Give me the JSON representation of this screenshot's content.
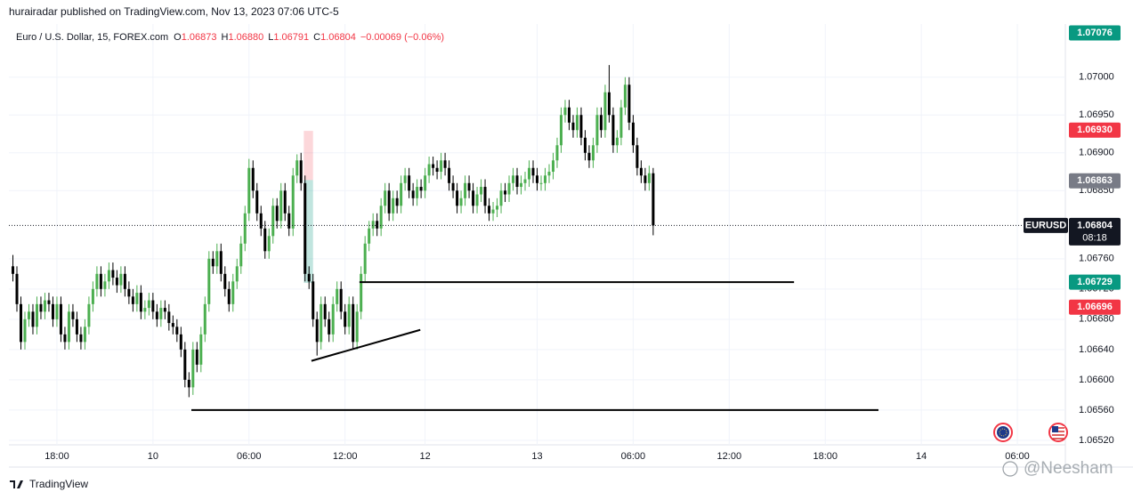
{
  "chart_data": {
    "type": "candlestick",
    "publisher": "hurairadar published on TradingView.com, Nov 13, 2023 07:06 UTC-5",
    "title": "Euro / U.S. Dollar, 15, FOREX.com",
    "ohlc_display": [
      {
        "key": "O",
        "text": "1.06873"
      },
      {
        "key": "H",
        "text": "1.06880"
      },
      {
        "key": "L",
        "text": "1.06791"
      },
      {
        "key": "C",
        "text": "1.06804"
      }
    ],
    "change": "−0.00069 (−0.06%)",
    "grid": true,
    "xlim": [
      -1,
      263
    ],
    "ylim": [
      1.06514,
      1.07102
    ],
    "xticks": [
      {
        "value": 11,
        "label": "18:00"
      },
      {
        "value": 35,
        "label": "10"
      },
      {
        "value": 59,
        "label": "06:00"
      },
      {
        "value": 83,
        "label": "12:00"
      },
      {
        "value": 103,
        "label": "12"
      },
      {
        "value": 131,
        "label": "13"
      },
      {
        "value": 155,
        "label": "06:00"
      },
      {
        "value": 179,
        "label": "12:00"
      },
      {
        "value": 203,
        "label": "18:00"
      },
      {
        "value": 227,
        "label": "14"
      },
      {
        "value": 251,
        "label": "06:00"
      }
    ],
    "yticks": [
      {
        "value": 1.07,
        "label": "1.07000"
      },
      {
        "value": 1.0695,
        "label": "1.06950"
      },
      {
        "value": 1.069,
        "label": "1.06900"
      },
      {
        "value": 1.0685,
        "label": "1.06850"
      },
      {
        "value": 1.0676,
        "label": "1.06760"
      },
      {
        "value": 1.0672,
        "label": "1.06720"
      },
      {
        "value": 1.0668,
        "label": "1.06680"
      },
      {
        "value": 1.0664,
        "label": "1.06640"
      },
      {
        "value": 1.066,
        "label": "1.06600"
      },
      {
        "value": 1.0656,
        "label": "1.06560"
      },
      {
        "value": 1.0652,
        "label": "1.06520"
      }
    ],
    "series": [
      {
        "name": "EURUSD",
        "up_color": "#4caf50",
        "down_color": "#000000",
        "open": [
          1.0675,
          1.0674,
          1.067,
          1.0665,
          1.0668,
          1.0669,
          1.0667,
          1.067,
          1.0669,
          1.06705,
          1.067,
          1.0668,
          1.067,
          1.0666,
          1.0665,
          1.0669,
          1.0668,
          1.0666,
          1.0665,
          1.0667,
          1.067,
          1.0672,
          1.0674,
          1.0672,
          1.0673,
          1.06745,
          1.06735,
          1.06725,
          1.0674,
          1.0672,
          1.0671,
          1.067,
          1.06715,
          1.0669,
          1.06695,
          1.06705,
          1.0669,
          1.0668,
          1.06695,
          1.0669,
          1.06675,
          1.0667,
          1.0666,
          1.0664,
          1.066,
          1.0659,
          1.0664,
          1.0662,
          1.0666,
          1.067,
          1.0676,
          1.0675,
          1.0677,
          1.0674,
          1.0672,
          1.067,
          1.0673,
          1.0675,
          1.0678,
          1.0682,
          1.0688,
          1.0685,
          1.0682,
          1.068,
          1.0677,
          1.0679,
          1.0683,
          1.0681,
          1.0685,
          1.0682,
          1.068,
          1.0687,
          1.0689,
          1.0686,
          1.0674,
          1.0673,
          1.0668,
          1.0665,
          1.067,
          1.0668,
          1.0666,
          1.067,
          1.0672,
          1.0669,
          1.0667,
          1.067,
          1.0665,
          1.0669,
          1.0674,
          1.0678,
          1.068,
          1.0681,
          1.068,
          1.0683,
          1.0685,
          1.0682,
          1.0684,
          1.0683,
          1.0686,
          1.0687,
          1.0685,
          1.0684,
          1.06855,
          1.0685,
          1.0687,
          1.06885,
          1.0688,
          1.06875,
          1.0689,
          1.0688,
          1.0686,
          1.0685,
          1.0683,
          1.0684,
          1.0686,
          1.0685,
          1.0683,
          1.06845,
          1.06855,
          1.0683,
          1.0682,
          1.06825,
          1.0683,
          1.0685,
          1.06845,
          1.0686,
          1.0687,
          1.06855,
          1.0686,
          1.06865,
          1.0688,
          1.0687,
          1.0686,
          1.0686,
          1.0687,
          1.06875,
          1.0689,
          1.0691,
          1.0695,
          1.0696,
          1.0694,
          1.0693,
          1.0695,
          1.0692,
          1.069,
          1.0689,
          1.0691,
          1.0695,
          1.0693,
          1.0698,
          1.0695,
          1.0691,
          1.0692,
          1.0696,
          1.0699,
          1.0694,
          1.0691,
          1.0688,
          1.0687,
          1.0686,
          1.06873
        ],
        "high": [
          1.06765,
          1.0675,
          1.0671,
          1.0669,
          1.067,
          1.067,
          1.0671,
          1.0671,
          1.06715,
          1.06715,
          1.0671,
          1.0671,
          1.0671,
          1.0667,
          1.067,
          1.067,
          1.0669,
          1.0667,
          1.0668,
          1.0671,
          1.0673,
          1.0675,
          1.0675,
          1.0674,
          1.06755,
          1.06755,
          1.06745,
          1.0675,
          1.0675,
          1.0673,
          1.0672,
          1.06725,
          1.06725,
          1.06705,
          1.06715,
          1.06715,
          1.067,
          1.06705,
          1.06705,
          1.067,
          1.06685,
          1.0668,
          1.0667,
          1.0665,
          1.0661,
          1.0665,
          1.0665,
          1.0667,
          1.0671,
          1.0677,
          1.0677,
          1.0678,
          1.0678,
          1.0675,
          1.0673,
          1.0674,
          1.0676,
          1.0679,
          1.0683,
          1.06892,
          1.0689,
          1.0686,
          1.0683,
          1.0681,
          1.068,
          1.0684,
          1.0684,
          1.0686,
          1.0686,
          1.0683,
          1.0688,
          1.06898,
          1.069,
          1.0687,
          1.0675,
          1.0674,
          1.0669,
          1.0671,
          1.0671,
          1.0669,
          1.0671,
          1.0673,
          1.0673,
          1.067,
          1.0671,
          1.0671,
          1.067,
          1.0675,
          1.0679,
          1.0681,
          1.0682,
          1.0682,
          1.0684,
          1.0686,
          1.0686,
          1.0685,
          1.0685,
          1.0687,
          1.0688,
          1.0688,
          1.0686,
          1.06865,
          1.06865,
          1.0688,
          1.06895,
          1.06895,
          1.0689,
          1.069,
          1.069,
          1.0689,
          1.0687,
          1.0686,
          1.0685,
          1.0687,
          1.0687,
          1.0686,
          1.06855,
          1.06865,
          1.06865,
          1.0684,
          1.06835,
          1.0684,
          1.0686,
          1.0686,
          1.0687,
          1.0688,
          1.0688,
          1.0687,
          1.06875,
          1.0689,
          1.0689,
          1.0688,
          1.0687,
          1.0688,
          1.06885,
          1.069,
          1.0692,
          1.0696,
          1.0697,
          1.0697,
          1.0695,
          1.0696,
          1.0696,
          1.0693,
          1.0691,
          1.0692,
          1.0696,
          1.0696,
          1.0699,
          1.07016,
          1.0696,
          1.0693,
          1.0697,
          1.07,
          1.07,
          1.0695,
          1.0692,
          1.0689,
          1.0688,
          1.06883,
          1.0688
        ],
        "low": [
          1.0673,
          1.0669,
          1.0664,
          1.0664,
          1.0667,
          1.0666,
          1.0666,
          1.0668,
          1.0668,
          1.0669,
          1.0667,
          1.0667,
          1.0665,
          1.0664,
          1.0664,
          1.0667,
          1.0665,
          1.0664,
          1.0664,
          1.0666,
          1.0669,
          1.0671,
          1.0671,
          1.0671,
          1.0672,
          1.06725,
          1.06715,
          1.06715,
          1.0671,
          1.067,
          1.0669,
          1.0669,
          1.0668,
          1.0668,
          1.06685,
          1.0668,
          1.0667,
          1.0667,
          1.0668,
          1.06665,
          1.0666,
          1.0665,
          1.0663,
          1.0659,
          1.06577,
          1.0658,
          1.0661,
          1.0661,
          1.0665,
          1.0669,
          1.0674,
          1.0674,
          1.0673,
          1.0671,
          1.0669,
          1.0669,
          1.0672,
          1.0674,
          1.0677,
          1.0681,
          1.0684,
          1.0681,
          1.0679,
          1.0676,
          1.0676,
          1.0678,
          1.068,
          1.068,
          1.0681,
          1.0679,
          1.0679,
          1.0686,
          1.0685,
          1.0673,
          1.0672,
          1.0667,
          1.06632,
          1.0664,
          1.0667,
          1.0665,
          1.0665,
          1.0669,
          1.0668,
          1.0666,
          1.0666,
          1.0664,
          1.0664,
          1.0668,
          1.0673,
          1.0677,
          1.0679,
          1.0679,
          1.0679,
          1.0682,
          1.0681,
          1.0681,
          1.0682,
          1.0682,
          1.0685,
          1.0684,
          1.0683,
          1.0683,
          1.0684,
          1.0684,
          1.0686,
          1.0687,
          1.06865,
          1.06865,
          1.0687,
          1.0685,
          1.0684,
          1.0682,
          1.0682,
          1.0683,
          1.0684,
          1.0682,
          1.0682,
          1.06835,
          1.0682,
          1.0681,
          1.0681,
          1.06815,
          1.0682,
          1.06835,
          1.06835,
          1.0685,
          1.06845,
          1.06845,
          1.0685,
          1.06855,
          1.0686,
          1.0685,
          1.0685,
          1.0685,
          1.0686,
          1.06865,
          1.0688,
          1.069,
          1.0694,
          1.0693,
          1.0692,
          1.0692,
          1.0691,
          1.0689,
          1.0688,
          1.0688,
          1.069,
          1.0692,
          1.0692,
          1.0694,
          1.069,
          1.069,
          1.0691,
          1.0695,
          1.0693,
          1.069,
          1.0687,
          1.0686,
          1.0685,
          1.0685,
          1.06791
        ],
        "close": [
          1.0674,
          1.067,
          1.0665,
          1.0668,
          1.0669,
          1.0667,
          1.067,
          1.0669,
          1.06705,
          1.067,
          1.0668,
          1.067,
          1.0666,
          1.0665,
          1.0669,
          1.0668,
          1.0666,
          1.0665,
          1.0667,
          1.067,
          1.0672,
          1.0674,
          1.0672,
          1.0673,
          1.06745,
          1.06735,
          1.06725,
          1.0674,
          1.0672,
          1.0671,
          1.067,
          1.06715,
          1.0669,
          1.06695,
          1.06705,
          1.0669,
          1.0668,
          1.06695,
          1.0669,
          1.06675,
          1.0667,
          1.0666,
          1.0664,
          1.066,
          1.0659,
          1.0664,
          1.0662,
          1.0666,
          1.067,
          1.0676,
          1.0675,
          1.0677,
          1.0674,
          1.0672,
          1.067,
          1.0673,
          1.0675,
          1.0678,
          1.0682,
          1.0688,
          1.0685,
          1.0682,
          1.068,
          1.0677,
          1.0679,
          1.0683,
          1.0681,
          1.0685,
          1.0682,
          1.068,
          1.0687,
          1.0689,
          1.0686,
          1.0674,
          1.0673,
          1.0668,
          1.0665,
          1.067,
          1.0668,
          1.0666,
          1.067,
          1.0672,
          1.0669,
          1.0667,
          1.067,
          1.0665,
          1.0669,
          1.0674,
          1.0678,
          1.068,
          1.0681,
          1.068,
          1.0683,
          1.0685,
          1.0682,
          1.0684,
          1.0683,
          1.0686,
          1.0687,
          1.0685,
          1.0684,
          1.06855,
          1.0685,
          1.0687,
          1.06885,
          1.0688,
          1.06875,
          1.0689,
          1.0688,
          1.0686,
          1.0685,
          1.0683,
          1.0684,
          1.0686,
          1.0685,
          1.0683,
          1.06845,
          1.06855,
          1.0683,
          1.0682,
          1.06825,
          1.0683,
          1.0685,
          1.06845,
          1.0686,
          1.0687,
          1.06855,
          1.0686,
          1.06865,
          1.0688,
          1.0687,
          1.0686,
          1.0686,
          1.0687,
          1.06875,
          1.0689,
          1.0691,
          1.0695,
          1.0696,
          1.0694,
          1.0693,
          1.0695,
          1.0692,
          1.069,
          1.0689,
          1.0691,
          1.0695,
          1.0693,
          1.0698,
          1.0695,
          1.0691,
          1.0692,
          1.0696,
          1.0699,
          1.0694,
          1.0691,
          1.0688,
          1.0687,
          1.0686,
          1.06873,
          1.06804
        ]
      }
    ],
    "current": {
      "value": 1.06804,
      "label": "1.06804",
      "symbol": "EURUSD",
      "countdown": "08:18"
    },
    "price_labels": [
      {
        "value": 1.07076,
        "label": "1.07076",
        "color": "#089981"
      },
      {
        "value": 1.0693,
        "label": "1.06930",
        "color": "#f23645"
      },
      {
        "value": 1.06863,
        "label": "1.06863",
        "color": "#787b86"
      },
      {
        "value": 1.06729,
        "label": "1.06729",
        "color": "#089981"
      },
      {
        "value": 1.06696,
        "label": "1.06696",
        "color": "#f23645"
      }
    ],
    "position_box": {
      "x": [
        72.7,
        75.0
      ],
      "stop": 1.06929,
      "entry": 1.06864,
      "target": 1.06728
    },
    "lines": [
      {
        "x": [
          44.6,
          216.3
        ],
        "y": [
          1.0656,
          1.0656
        ]
      },
      {
        "x": [
          86.6,
          195.2
        ],
        "y": [
          1.06729,
          1.06729
        ]
      },
      {
        "x": [
          74.6,
          101.8
        ],
        "y": [
          1.06625,
          1.06666
        ]
      }
    ],
    "footer": "TradingView",
    "watermark": "@Neesham"
  }
}
